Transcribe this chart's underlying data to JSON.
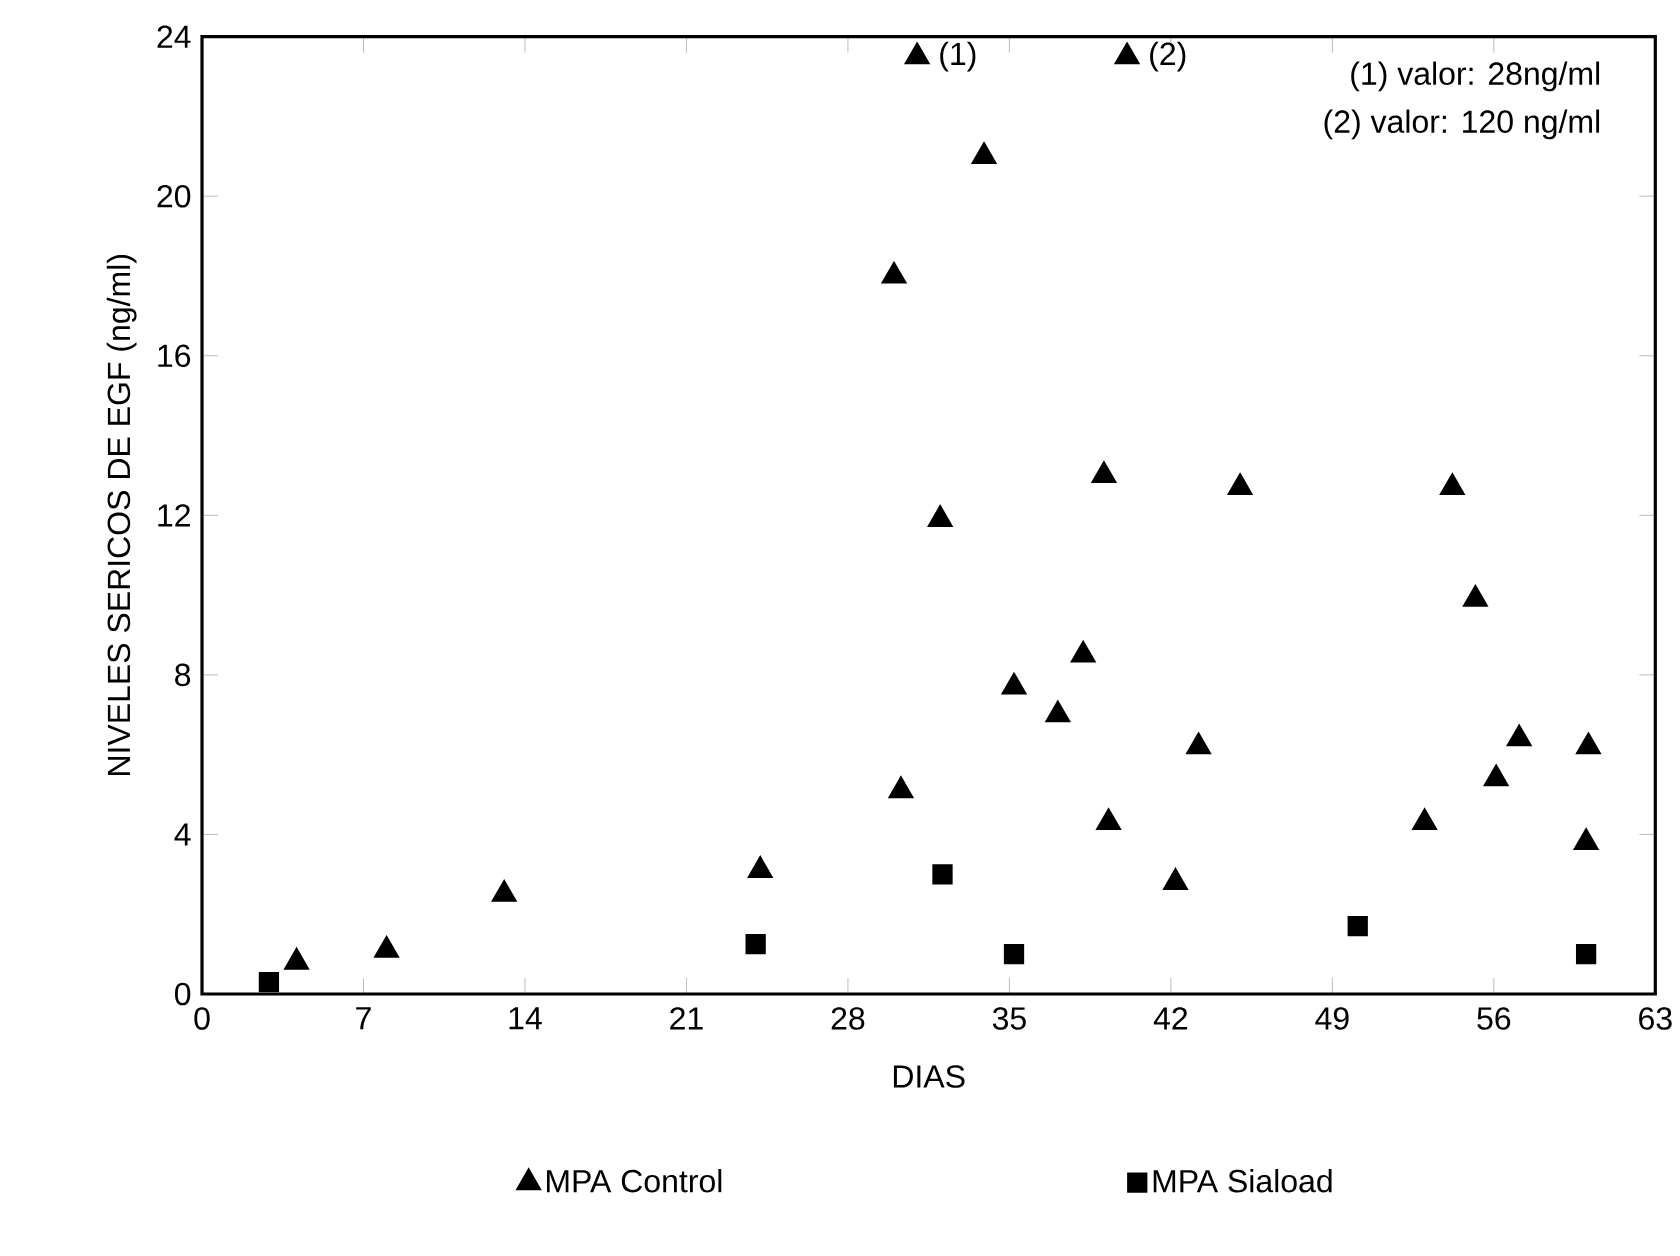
{
  "chart_data": {
    "type": "scatter",
    "xlabel": "DIAS",
    "ylabel": "NIVELES SERICOS DE EGF (ng/ml)",
    "xlim": [
      0,
      63
    ],
    "xticks": [
      0,
      7,
      14,
      21,
      28,
      35,
      42,
      49,
      56,
      63
    ],
    "ylim": [
      0,
      24
    ],
    "yticks": [
      0,
      4,
      8,
      12,
      16,
      20,
      24
    ],
    "legend": "bottom",
    "series": [
      {
        "name": "MPA Control",
        "color": "#000000",
        "marker": "triangle",
        "x": [
          4.1,
          8.0,
          13.1,
          24.2,
          30.0,
          30.3,
          31.0,
          32.0,
          33.9,
          35.2,
          37.1,
          38.2,
          39.1,
          39.3,
          40.1,
          42.2,
          43.2,
          45.0,
          53.0,
          54.2,
          55.2,
          56.1,
          57.1,
          60.0,
          60.1
        ],
        "values": [
          0.8,
          1.1,
          2.5,
          3.1,
          18.0,
          5.1,
          23.5,
          11.9,
          21.0,
          7.7,
          7.0,
          8.5,
          13.0,
          4.3,
          23.5,
          2.8,
          6.2,
          12.7,
          4.3,
          12.7,
          9.9,
          5.4,
          6.4,
          3.8,
          6.2
        ]
      },
      {
        "name": "MPA Siaload",
        "color": "#000000",
        "marker": "square",
        "x": [
          2.9,
          24.0,
          32.1,
          35.2,
          50.1,
          60.0
        ],
        "values": [
          0.3,
          1.25,
          3.0,
          1.0,
          1.7,
          1.0
        ]
      }
    ],
    "annotations": [
      {
        "text": "(1)",
        "x": 31.0,
        "y": 23.5
      },
      {
        "text": "(2)",
        "x": 40.1,
        "y": 23.5
      },
      "(1) valor: 28ng/ml",
      "(2) valor: 120 ng/ml"
    ]
  }
}
